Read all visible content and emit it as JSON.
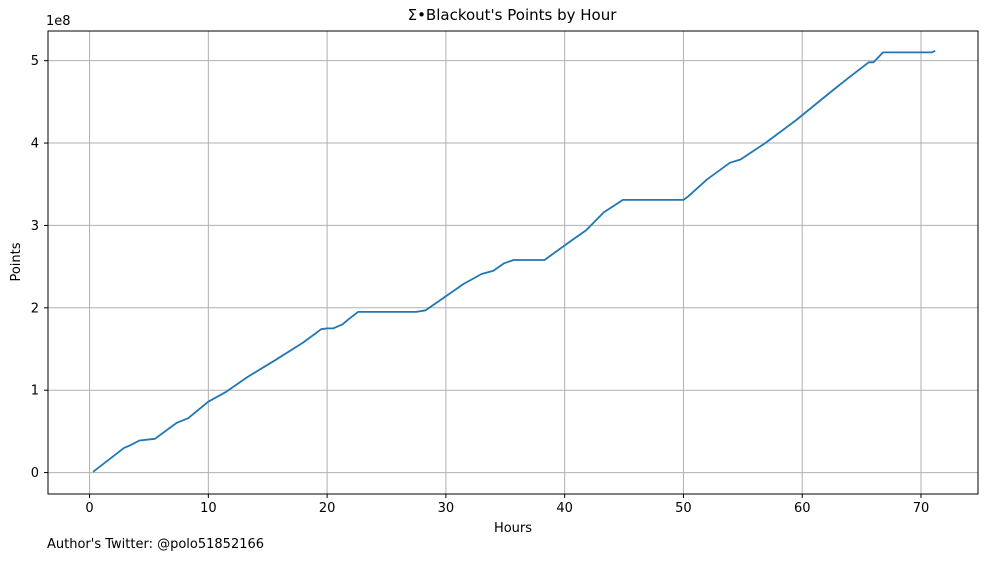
{
  "chart_data": {
    "type": "line",
    "title": "Σ•Blackout's Points by Hour",
    "xlabel": "Hours",
    "ylabel": "Points",
    "y_scale_label": "1e8",
    "xlim": [
      -3.5,
      74.8
    ],
    "ylim": [
      -0.26,
      5.36
    ],
    "x_ticks": [
      0,
      10,
      20,
      30,
      40,
      50,
      60,
      70
    ],
    "x_tick_labels": [
      "0",
      "10",
      "20",
      "30",
      "40",
      "50",
      "60",
      "70"
    ],
    "y_ticks": [
      0,
      1,
      2,
      3,
      4,
      5
    ],
    "y_tick_labels": [
      "0",
      "1",
      "2",
      "3",
      "4",
      "5"
    ],
    "grid": true,
    "line_color": "#1f77b4",
    "series": [
      {
        "name": "Σ•Blackout",
        "x": [
          0.3,
          2.9,
          3.4,
          4.2,
          5.5,
          7.3,
          8.3,
          10.0,
          11.5,
          13.3,
          15.7,
          18.0,
          19.5,
          20.0,
          20.5,
          21.3,
          21.8,
          22.6,
          23.0,
          25.0,
          27.5,
          28.3,
          31.5,
          33.0,
          34.0,
          34.9,
          35.7,
          38.3,
          40.5,
          41.8,
          43.3,
          44.9,
          45.4,
          46.0,
          50.0,
          50.3,
          52.0,
          53.9,
          54.8,
          56.9,
          59.5,
          62.4,
          63.8,
          65.6,
          66.0,
          66.8,
          67.3,
          70.9,
          71.2
        ],
        "y": [
          0.01,
          0.3,
          0.33,
          0.39,
          0.41,
          0.6,
          0.66,
          0.86,
          0.98,
          1.16,
          1.37,
          1.58,
          1.74,
          1.75,
          1.75,
          1.8,
          1.86,
          1.95,
          1.95,
          1.95,
          1.95,
          1.97,
          2.29,
          2.41,
          2.45,
          2.54,
          2.58,
          2.58,
          2.81,
          2.94,
          3.16,
          3.31,
          3.31,
          3.31,
          3.31,
          3.34,
          3.56,
          3.76,
          3.8,
          4.0,
          4.28,
          4.62,
          4.78,
          4.98,
          4.98,
          5.1,
          5.1,
          5.1,
          5.12
        ]
      }
    ]
  },
  "footer": {
    "author_text": "Author's Twitter: @polo51852166"
  }
}
